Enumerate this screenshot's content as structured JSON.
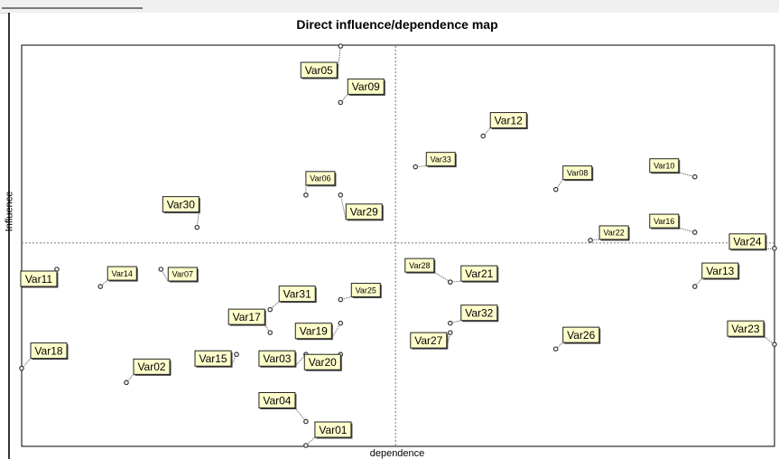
{
  "chart_data": {
    "type": "scatter",
    "title": "Direct influence/dependence map",
    "xlabel": "dependence",
    "ylabel": "Influence",
    "xlim": [
      0,
      1
    ],
    "ylim": [
      0,
      1
    ],
    "grid": false,
    "legend": "none",
    "colors": {
      "label_bg": "#ffffcc",
      "axis": "#000000",
      "divider": "#777777",
      "point": "#333333"
    },
    "divider": {
      "x": 0.4966,
      "y": 0.5071
    },
    "points": [
      {
        "label": "Var05",
        "x": 0.4236,
        "y": 1.0
      },
      {
        "label": "Var09",
        "x": 0.4236,
        "y": 0.8589
      },
      {
        "label": "Var12",
        "x": 0.613,
        "y": 0.7747
      },
      {
        "label": "Var33",
        "x": 0.5231,
        "y": 0.6976
      },
      {
        "label": "Var10",
        "x": 0.8942,
        "y": 0.6726
      },
      {
        "label": "Var08",
        "x": 0.7095,
        "y": 0.641
      },
      {
        "label": "Var06",
        "x": 0.3776,
        "y": 0.6271
      },
      {
        "label": "Var29",
        "x": 0.4236,
        "y": 0.6271
      },
      {
        "label": "Var30",
        "x": 0.233,
        "y": 0.5461
      },
      {
        "label": "Var16",
        "x": 0.8942,
        "y": 0.5337
      },
      {
        "label": "Var22",
        "x": 0.7555,
        "y": 0.5137
      },
      {
        "label": "Var24",
        "x": 1.0,
        "y": 0.4936
      },
      {
        "label": "Var11",
        "x": 0.0467,
        "y": 0.4412
      },
      {
        "label": "Var07",
        "x": 0.185,
        "y": 0.4412
      },
      {
        "label": "Var14",
        "x": 0.1046,
        "y": 0.398
      },
      {
        "label": "Var13",
        "x": 0.8942,
        "y": 0.398
      },
      {
        "label": "Var28",
        "x": 0.5693,
        "y": 0.4092
      },
      {
        "label": "Var21",
        "x": 0.5693,
        "y": 0.4092
      },
      {
        "label": "Var25",
        "x": 0.4236,
        "y": 0.3653
      },
      {
        "label": "Var31",
        "x": 0.33,
        "y": 0.3402
      },
      {
        "label": "Var17",
        "x": 0.33,
        "y": 0.2825
      },
      {
        "label": "Var19",
        "x": 0.4236,
        "y": 0.3061
      },
      {
        "label": "Var32",
        "x": 0.5693,
        "y": 0.3061
      },
      {
        "label": "Var27",
        "x": 0.5693,
        "y": 0.2825
      },
      {
        "label": "Var26",
        "x": 0.7095,
        "y": 0.2418
      },
      {
        "label": "Var23",
        "x": 1.0,
        "y": 0.253
      },
      {
        "label": "Var18",
        "x": 0.0,
        "y": 0.1932
      },
      {
        "label": "Var02",
        "x": 0.1391,
        "y": 0.1576
      },
      {
        "label": "Var15",
        "x": 0.2854,
        "y": 0.228
      },
      {
        "label": "Var03",
        "x": 0.3776,
        "y": 0.228
      },
      {
        "label": "Var20",
        "x": 0.4236,
        "y": 0.228
      },
      {
        "label": "Var04",
        "x": 0.3776,
        "y": 0.06
      },
      {
        "label": "Var01",
        "x": 0.3776,
        "y": 0.0
      }
    ]
  }
}
